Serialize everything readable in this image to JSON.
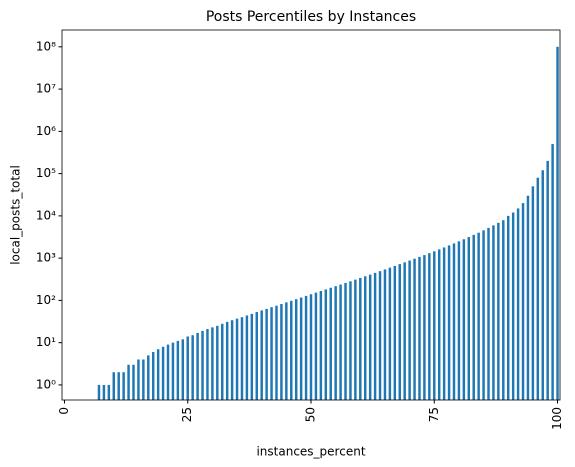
{
  "chart_data": {
    "type": "bar",
    "title": "Posts Percentiles by Instances",
    "xlabel": "instances_percent",
    "ylabel": "local_posts_total",
    "categories": [
      "0",
      null,
      null,
      null,
      null,
      null,
      null,
      null,
      null,
      null,
      null,
      null,
      null,
      null,
      null,
      null,
      null,
      null,
      null,
      null,
      null,
      null,
      null,
      null,
      null,
      "25",
      null,
      null,
      null,
      null,
      null,
      null,
      null,
      null,
      null,
      null,
      null,
      null,
      null,
      null,
      null,
      null,
      null,
      null,
      null,
      null,
      null,
      null,
      null,
      null,
      "50",
      null,
      null,
      null,
      null,
      null,
      null,
      null,
      null,
      null,
      null,
      null,
      null,
      null,
      null,
      null,
      null,
      null,
      null,
      null,
      null,
      null,
      null,
      null,
      null,
      "75",
      null,
      null,
      null,
      null,
      null,
      null,
      null,
      null,
      null,
      null,
      null,
      null,
      null,
      null,
      null,
      null,
      null,
      null,
      null,
      null,
      null,
      null,
      null,
      null,
      "100"
    ],
    "values": [
      0,
      0,
      0,
      0,
      0,
      0,
      0,
      1,
      1,
      1,
      2,
      2,
      2,
      3,
      3,
      4,
      4,
      5,
      6,
      7,
      8,
      9,
      10,
      11,
      12,
      14,
      15,
      17,
      19,
      21,
      23,
      25,
      28,
      31,
      34,
      37,
      40,
      44,
      48,
      53,
      58,
      63,
      69,
      75,
      82,
      90,
      98,
      107,
      117,
      128,
      140,
      153,
      167,
      182,
      199,
      217,
      237,
      259,
      283,
      310,
      340,
      372,
      408,
      448,
      492,
      541,
      595,
      655,
      722,
      796,
      878,
      970,
      1070,
      1180,
      1310,
      1450,
      1610,
      1790,
      2000,
      2230,
      2500,
      2800,
      3150,
      3550,
      4000,
      4550,
      5200,
      5950,
      6850,
      7900,
      10000,
      12000,
      15000,
      20000,
      30000,
      50000,
      80000,
      120000,
      200000,
      500000,
      100000000
    ],
    "color": "#1f77b4",
    "log_scale": true,
    "ylim": [
      0.44,
      250000000
    ],
    "yticks": [
      {
        "value": 1,
        "label": "10⁰"
      },
      {
        "value": 10,
        "label": "10¹"
      },
      {
        "value": 100,
        "label": "10²"
      },
      {
        "value": 1000,
        "label": "10³"
      },
      {
        "value": 10000,
        "label": "10⁴"
      },
      {
        "value": 100000,
        "label": "10⁵"
      },
      {
        "value": 1000000,
        "label": "10⁶"
      },
      {
        "value": 10000000,
        "label": "10⁷"
      },
      {
        "value": 100000000,
        "label": "10⁸"
      }
    ]
  }
}
